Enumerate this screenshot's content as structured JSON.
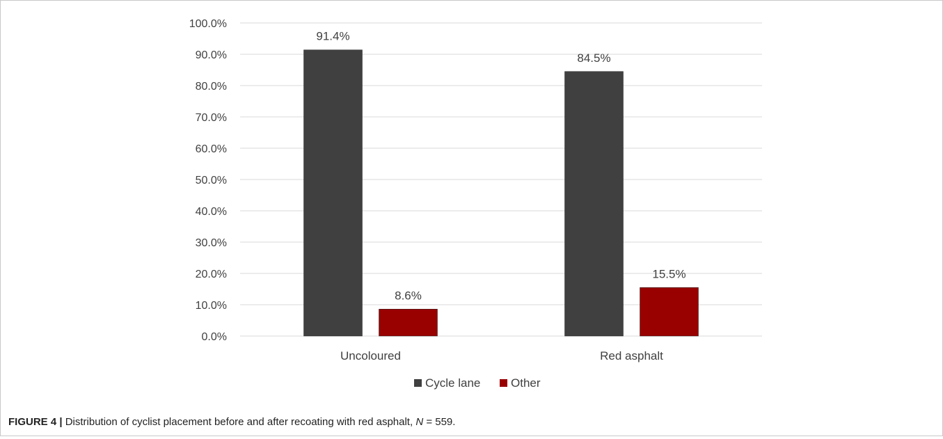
{
  "chart_data": {
    "type": "bar",
    "categories": [
      "Uncoloured",
      "Red asphalt"
    ],
    "series": [
      {
        "name": "Cycle lane",
        "values": [
          91.4,
          84.5
        ],
        "labels": [
          "91.4%",
          "84.5%"
        ],
        "color": "#404040"
      },
      {
        "name": "Other",
        "values": [
          8.6,
          15.5
        ],
        "labels": [
          "8.6%",
          "15.5%"
        ],
        "color": "#990000"
      }
    ],
    "ylim": [
      0,
      100
    ],
    "yticks": [
      0,
      10,
      20,
      30,
      40,
      50,
      60,
      70,
      80,
      90,
      100
    ],
    "ytick_labels": [
      "0.0%",
      "10.0%",
      "20.0%",
      "30.0%",
      "40.0%",
      "50.0%",
      "60.0%",
      "70.0%",
      "80.0%",
      "90.0%",
      "100.0%"
    ],
    "grid": true,
    "legend_position": "bottom-center",
    "gridline_color": "#d9d9d9"
  },
  "caption": {
    "figure_label": "FIGURE 4 |",
    "text_before": " Distribution of cyclist placement before and after recoating with red asphalt, ",
    "n_symbol": "N",
    "text_after": " = 559."
  }
}
